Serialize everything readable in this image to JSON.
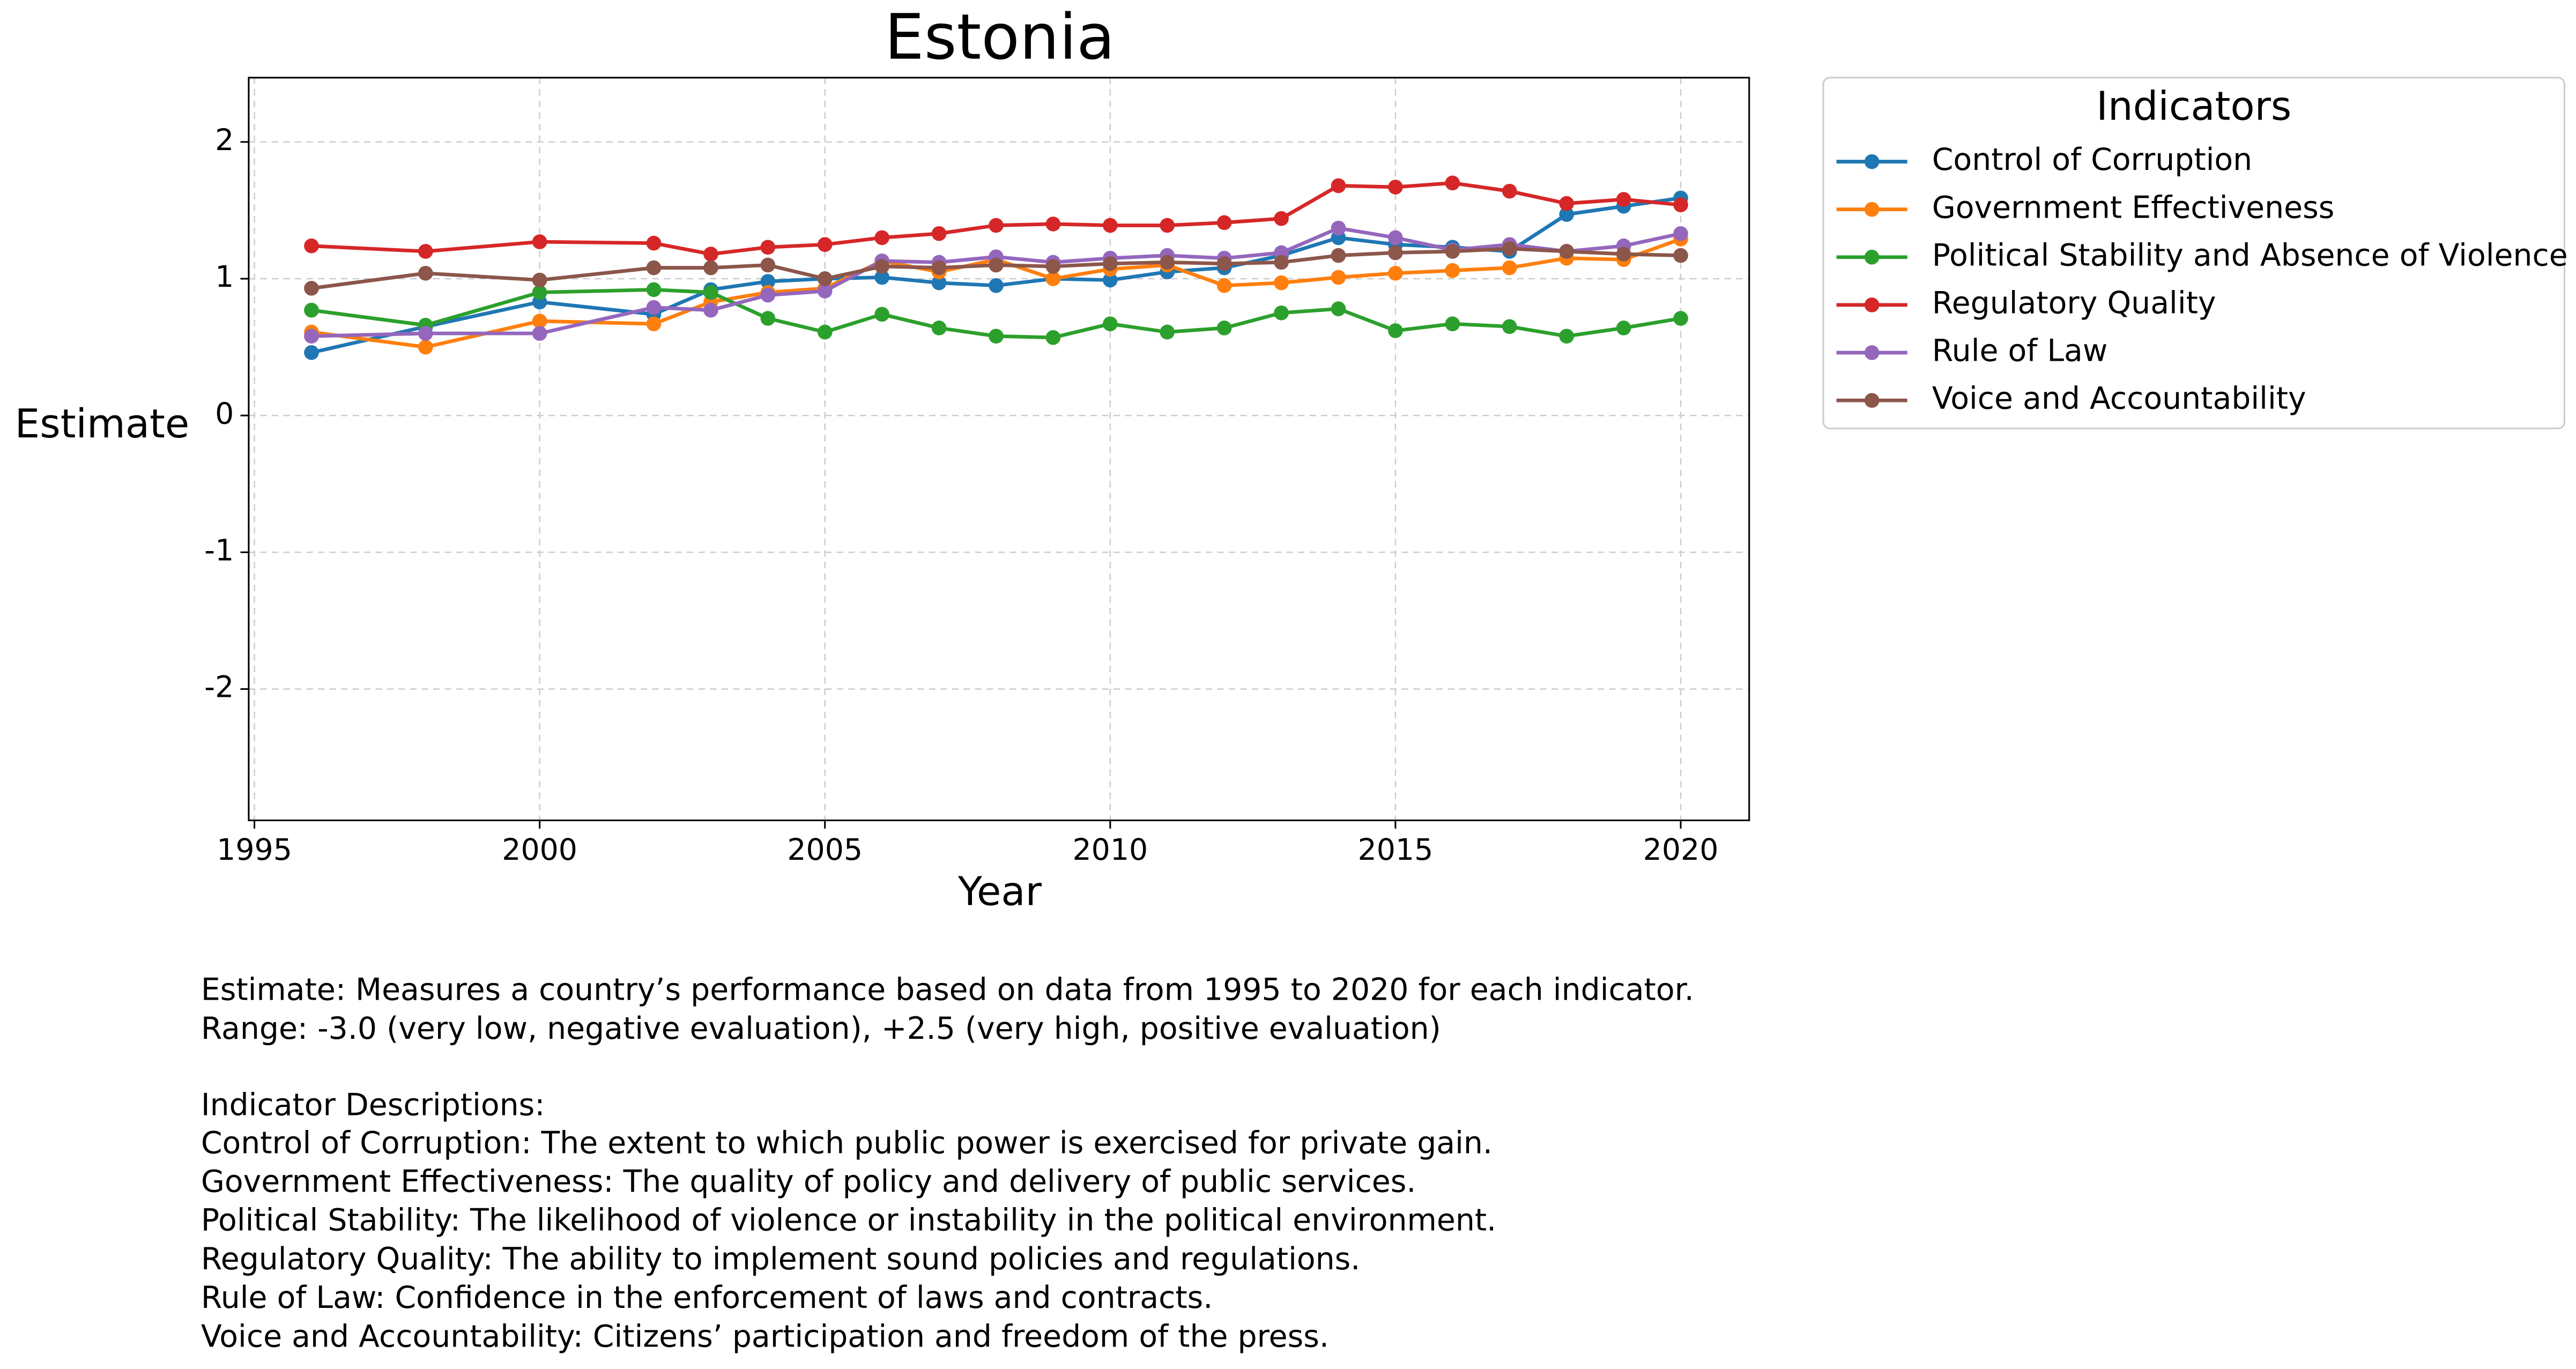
{
  "chart_data": {
    "type": "line",
    "title": "Estonia",
    "x_label": "Year",
    "y_label": "Estimate",
    "legend_title": "Indicators",
    "legend": "outside upper right",
    "grid": true,
    "x": [
      1996,
      1998,
      2000,
      2002,
      2003,
      2004,
      2005,
      2006,
      2007,
      2008,
      2009,
      2010,
      2011,
      2012,
      2013,
      2014,
      2015,
      2016,
      2017,
      2018,
      2019,
      2020
    ],
    "xlim": [
      1994.9,
      2021.2
    ],
    "xticks": [
      1995,
      2000,
      2005,
      2010,
      2015,
      2020
    ],
    "ylim": [
      -2.96,
      2.47
    ],
    "yticks": [
      -2,
      -1,
      0,
      1,
      2
    ],
    "series": [
      {
        "name": "Control of Corruption",
        "color": "#1f77b4",
        "values": [
          0.46,
          0.65,
          0.83,
          0.74,
          0.92,
          0.98,
          1.0,
          1.01,
          0.97,
          0.95,
          1.0,
          0.99,
          1.05,
          1.08,
          1.17,
          1.3,
          1.25,
          1.23,
          1.2,
          1.47,
          1.53,
          1.59
        ]
      },
      {
        "name": "Government Effectiveness",
        "color": "#ff7f0e",
        "values": [
          0.61,
          0.5,
          0.69,
          0.67,
          0.83,
          0.9,
          0.93,
          1.13,
          1.05,
          1.14,
          1.0,
          1.07,
          1.1,
          0.95,
          0.97,
          1.01,
          1.04,
          1.06,
          1.08,
          1.15,
          1.14,
          1.29
        ]
      },
      {
        "name": "Political Stability and Absence of Violence",
        "color": "#2ca02c",
        "values": [
          0.77,
          0.66,
          0.9,
          0.92,
          0.9,
          0.71,
          0.61,
          0.74,
          0.64,
          0.58,
          0.57,
          0.67,
          0.61,
          0.64,
          0.75,
          0.78,
          0.62,
          0.67,
          0.65,
          0.58,
          0.64,
          0.71
        ]
      },
      {
        "name": "Regulatory Quality",
        "color": "#d62728",
        "values": [
          1.24,
          1.2,
          1.27,
          1.26,
          1.18,
          1.23,
          1.25,
          1.3,
          1.33,
          1.39,
          1.4,
          1.39,
          1.39,
          1.41,
          1.44,
          1.68,
          1.67,
          1.7,
          1.64,
          1.55,
          1.58,
          1.54
        ]
      },
      {
        "name": "Rule of Law",
        "color": "#9467bd",
        "values": [
          0.58,
          0.6,
          0.6,
          0.79,
          0.77,
          0.88,
          0.91,
          1.13,
          1.12,
          1.16,
          1.12,
          1.15,
          1.17,
          1.15,
          1.19,
          1.37,
          1.3,
          1.21,
          1.25,
          1.2,
          1.24,
          1.33
        ]
      },
      {
        "name": "Voice and Accountability",
        "color": "#8c564b",
        "values": [
          0.93,
          1.04,
          0.99,
          1.08,
          1.08,
          1.1,
          1.0,
          1.09,
          1.08,
          1.1,
          1.09,
          1.11,
          1.12,
          1.11,
          1.12,
          1.17,
          1.19,
          1.2,
          1.22,
          1.2,
          1.18,
          1.17
        ]
      }
    ],
    "notes": [
      "Estimate: Measures a country’s performance based on data from 1995 to 2020 for each indicator.",
      "Range: -3.0 (very low, negative evaluation), +2.5 (very high, positive evaluation)"
    ],
    "descriptions_title": "Indicator Descriptions:",
    "descriptions": [
      "Control of Corruption: The extent to which public power is exercised for private gain.",
      "Government Effectiveness: The quality of policy and delivery of public services.",
      "Political Stability: The likelihood of violence or instability in the political environment.",
      "Regulatory Quality: The ability to implement sound policies and regulations.",
      "Rule of Law: Confidence in the enforcement of laws and contracts.",
      "Voice and Accountability: Citizens’ participation and freedom of the press."
    ]
  }
}
